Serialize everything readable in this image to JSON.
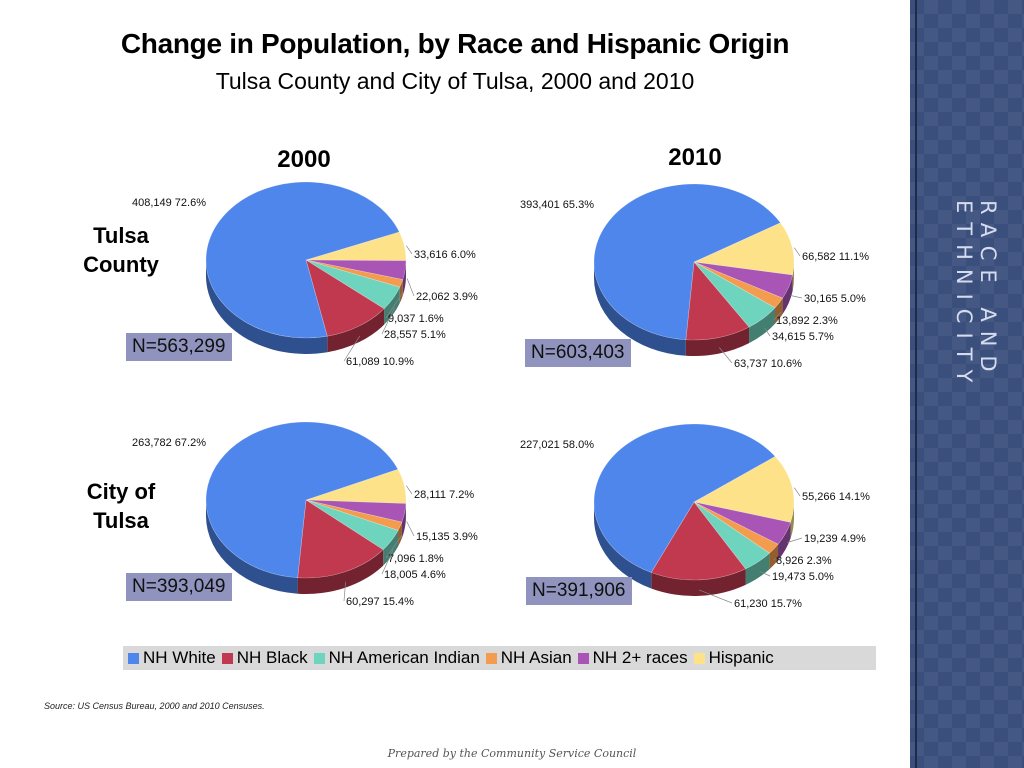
{
  "title": "Change in Population, by Race and Hispanic Origin",
  "subtitle": "Tulsa County and City of Tulsa, 2000 and 2010",
  "sidebar_text": "RACE AND ETHNICITY",
  "source": "Source:  US Census Bureau, 2000 and 2010 Censuses.",
  "footer": "Prepared by the Community Service Council",
  "columns": [
    "2000",
    "2010"
  ],
  "rows": [
    "Tulsa County",
    "City of Tulsa"
  ],
  "colors": {
    "NH White": "#4f86ec",
    "NH Black": "#c0394f",
    "NH American Indian": "#6fd4bd",
    "NH Asian": "#f39b4f",
    "NH 2+ races": "#a855b5",
    "Hispanic": "#fde28a",
    "n_box": "#8f93bd",
    "sidebar": "#3b4f7c"
  },
  "legend": [
    "NH White",
    "NH Black",
    "NH American Indian",
    "NH Asian",
    "NH 2+ races",
    "Hispanic"
  ],
  "chart_data": [
    {
      "type": "pie",
      "title": "Tulsa County 2000",
      "n_label": "N=563,299",
      "categories": [
        "NH White",
        "NH Black",
        "NH American Indian",
        "NH Asian",
        "NH 2+ races",
        "Hispanic"
      ],
      "values": [
        408149,
        61089,
        28557,
        9037,
        22062,
        33616
      ],
      "value_labels": [
        "408,149",
        "61,089",
        "28,557",
        "9,037",
        "22,062",
        "33,616"
      ],
      "percent_labels": [
        "72.6%",
        "10.9%",
        "5.1%",
        "1.6%",
        "3.9%",
        "6.0%"
      ]
    },
    {
      "type": "pie",
      "title": "Tulsa County 2010",
      "n_label": "N=603,403",
      "categories": [
        "NH White",
        "NH Black",
        "NH American Indian",
        "NH Asian",
        "NH 2+ races",
        "Hispanic"
      ],
      "values": [
        393401,
        63737,
        34615,
        13892,
        30165,
        66582
      ],
      "value_labels": [
        "393,401",
        "63,737",
        "34,615",
        "13,892",
        "30,165",
        "66,582"
      ],
      "percent_labels": [
        "65.3%",
        "10.6%",
        "5.7%",
        "2.3%",
        "5.0%",
        "11.1%"
      ]
    },
    {
      "type": "pie",
      "title": "City of Tulsa 2000",
      "n_label": "N=393,049",
      "categories": [
        "NH White",
        "NH Black",
        "NH American Indian",
        "NH Asian",
        "NH 2+ races",
        "Hispanic"
      ],
      "values": [
        263782,
        60297,
        18005,
        7096,
        15135,
        28111
      ],
      "value_labels": [
        "263,782",
        "60,297",
        "18,005",
        "7,096",
        "15,135",
        "28,111"
      ],
      "percent_labels": [
        "67.2%",
        "15.4%",
        "4.6%",
        "1.8%",
        "3.9%",
        "7.2%"
      ]
    },
    {
      "type": "pie",
      "title": "City of Tulsa 2010",
      "n_label": "N=391,906",
      "categories": [
        "NH White",
        "NH Black",
        "NH American Indian",
        "NH Asian",
        "NH 2+ races",
        "Hispanic"
      ],
      "values": [
        227021,
        61230,
        19473,
        8926,
        19239,
        55266
      ],
      "value_labels": [
        "227,021",
        "61,230",
        "19,473",
        "8,926",
        "19,239",
        "55,266"
      ],
      "percent_labels": [
        "58.0%",
        "15.7%",
        "5.0%",
        "2.3%",
        "4.9%",
        "14.1%"
      ]
    }
  ]
}
